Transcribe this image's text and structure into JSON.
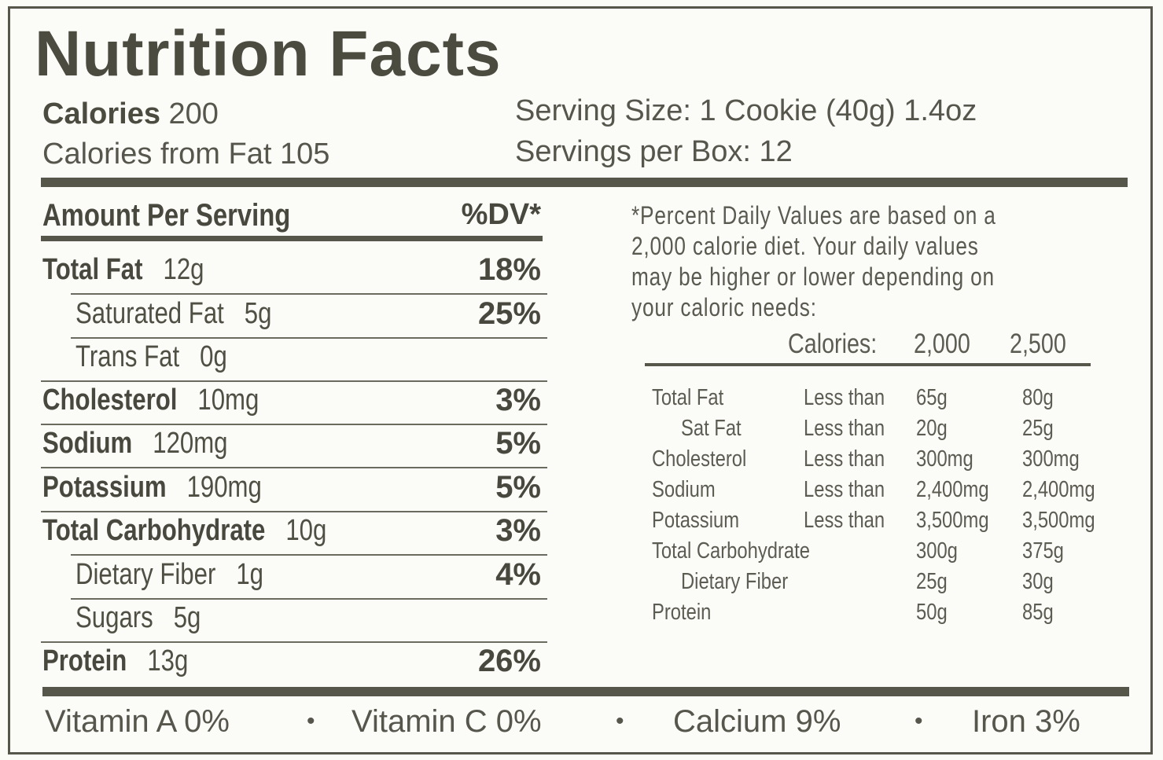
{
  "title": "Nutrition Facts",
  "calories": {
    "label": "Calories",
    "value": "200"
  },
  "calories_from_fat": "Calories from Fat 105",
  "serving_size": "Serving Size: 1 Cookie (40g) 1.4oz",
  "servings_per_box": "Servings per Box: 12",
  "amount_per_serving": "Amount Per Serving",
  "dv_header": "%DV*",
  "nutrients": [
    {
      "name": "Total Fat",
      "amount": "12g",
      "dv": "18%"
    },
    {
      "name": "Saturated Fat",
      "amount": "5g",
      "dv": "25%"
    },
    {
      "name": "Trans Fat",
      "amount": "0g",
      "dv": ""
    },
    {
      "name": "Cholesterol",
      "amount": "10mg",
      "dv": "3%"
    },
    {
      "name": "Sodium",
      "amount": "120mg",
      "dv": "5%"
    },
    {
      "name": "Potassium",
      "amount": "190mg",
      "dv": "5%"
    },
    {
      "name": "Total Carbohydrate",
      "amount": "10g",
      "dv": "3%"
    },
    {
      "name": "Dietary Fiber",
      "amount": "1g",
      "dv": "4%"
    },
    {
      "name": "Sugars",
      "amount": "5g",
      "dv": ""
    },
    {
      "name": "Protein",
      "amount": "13g",
      "dv": "26%"
    }
  ],
  "footnote": [
    "*Percent Daily Values are based on a",
    "2,000 calorie diet.  Your daily values",
    "may be higher or lower depending on",
    "your caloric needs:"
  ],
  "dv_table": {
    "calories_label": "Calories:",
    "col1": "2,000",
    "col2": "2,500",
    "rows": [
      {
        "name": "Total Fat",
        "qual": "Less than",
        "v1": "65g",
        "v2": "80g"
      },
      {
        "name": "Sat Fat",
        "qual": "Less than",
        "v1": "20g",
        "v2": "25g"
      },
      {
        "name": "Cholesterol",
        "qual": "Less than",
        "v1": "300mg",
        "v2": "300mg"
      },
      {
        "name": "Sodium",
        "qual": "Less than",
        "v1": "2,400mg",
        "v2": "2,400mg"
      },
      {
        "name": "Potassium",
        "qual": "Less than",
        "v1": "3,500mg",
        "v2": "3,500mg"
      },
      {
        "name": "Total Carbohydrate",
        "qual": "",
        "v1": "300g",
        "v2": "375g"
      },
      {
        "name": "Dietary Fiber",
        "qual": "",
        "v1": "25g",
        "v2": "30g"
      },
      {
        "name": "Protein",
        "qual": "",
        "v1": "50g",
        "v2": "85g"
      }
    ]
  },
  "vitamins": [
    "Vitamin A 0%",
    "Vitamin C 0%",
    "Calcium 9%",
    "Iron 3%"
  ],
  "separator": "•"
}
